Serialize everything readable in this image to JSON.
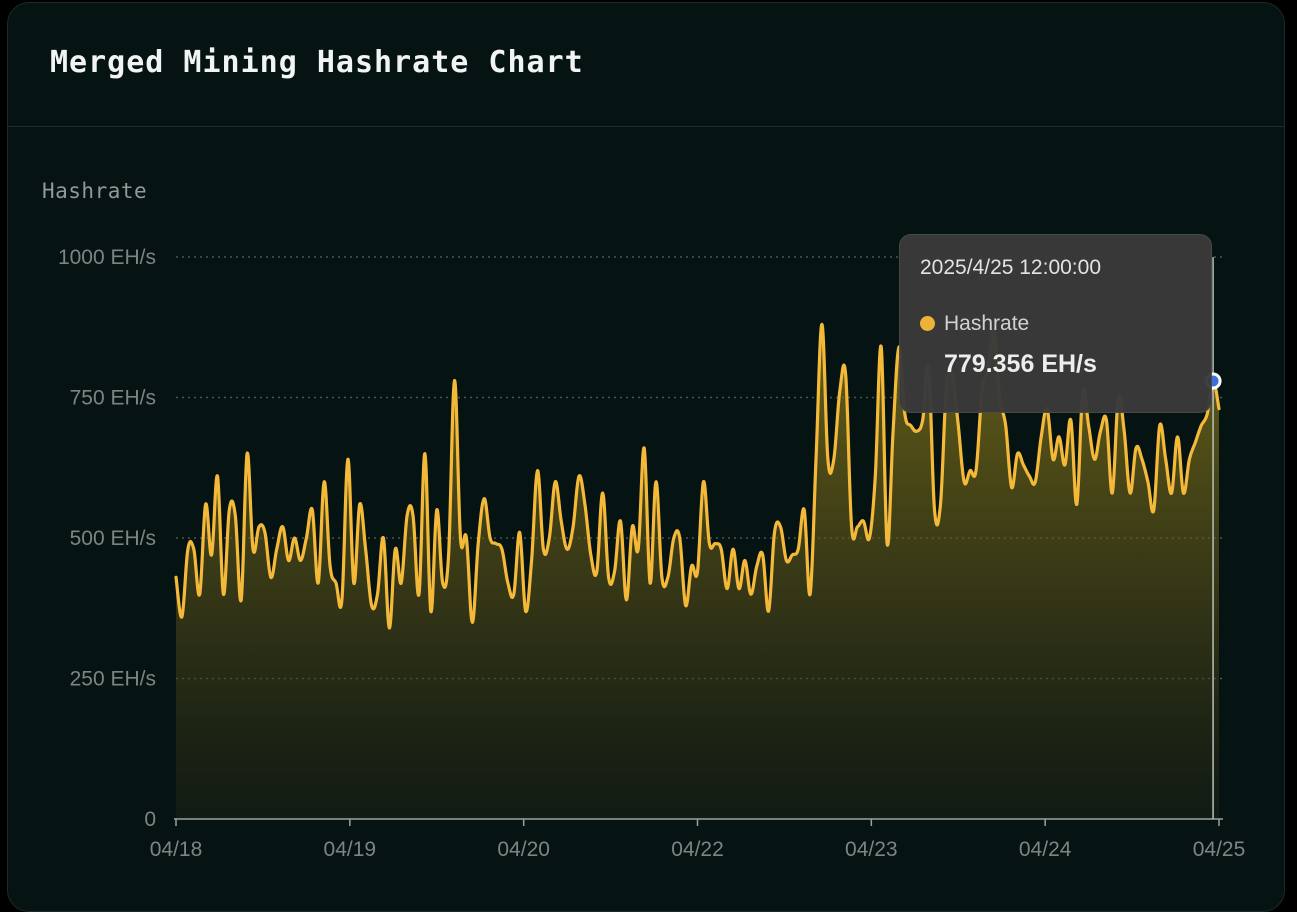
{
  "card": {
    "title": "Merged Mining Hashrate Chart"
  },
  "chart_data": {
    "type": "area",
    "xlabel": "",
    "ylabel": "Hashrate",
    "ylim": [
      0,
      1000
    ],
    "y_unit": "EH/s",
    "y_ticks": [
      {
        "value": 0,
        "label": "0"
      },
      {
        "value": 250,
        "label": "250 EH/s"
      },
      {
        "value": 500,
        "label": "500 EH/s"
      },
      {
        "value": 750,
        "label": "750 EH/s"
      },
      {
        "value": 1000,
        "label": "1000 EH/s"
      }
    ],
    "x_ticks": [
      "04/18",
      "04/19",
      "04/20",
      "04/22",
      "04/23",
      "04/24",
      "04/25"
    ],
    "grid": "horizontal dotted",
    "series": [
      {
        "name": "Hashrate",
        "color": "#f5b93a",
        "values": [
          430,
          360,
          480,
          480,
          400,
          560,
          470,
          610,
          400,
          550,
          540,
          390,
          650,
          480,
          520,
          510,
          430,
          480,
          520,
          460,
          500,
          460,
          500,
          550,
          420,
          600,
          450,
          420,
          390,
          640,
          420,
          560,
          480,
          380,
          400,
          500,
          340,
          480,
          420,
          540,
          540,
          400,
          650,
          370,
          550,
          420,
          470,
          780,
          500,
          500,
          350,
          490,
          570,
          500,
          490,
          480,
          420,
          400,
          510,
          370,
          460,
          620,
          480,
          500,
          600,
          530,
          480,
          520,
          610,
          560,
          470,
          440,
          580,
          430,
          440,
          530,
          390,
          520,
          480,
          660,
          420,
          600,
          430,
          430,
          500,
          500,
          380,
          450,
          440,
          600,
          490,
          490,
          480,
          410,
          480,
          410,
          460,
          400,
          450,
          470,
          370,
          510,
          520,
          460,
          470,
          480,
          550,
          400,
          640,
          880,
          640,
          640,
          760,
          790,
          520,
          520,
          530,
          500,
          610,
          840,
          490,
          690,
          840,
          720,
          700,
          690,
          710,
          800,
          550,
          560,
          770,
          790,
          700,
          600,
          620,
          620,
          760,
          800,
          870,
          750,
          700,
          590,
          650,
          630,
          610,
          600,
          680,
          730,
          640,
          680,
          630,
          710,
          560,
          760,
          700,
          640,
          690,
          710,
          580,
          750,
          690,
          580,
          660,
          640,
          600,
          550,
          700,
          640,
          580,
          680,
          580,
          640,
          670,
          700,
          720,
          779.356,
          730
        ]
      }
    ],
    "tooltip": {
      "date": "2025/4/25 12:00:00",
      "series": "Hashrate",
      "value": "779.356 EH/s"
    },
    "legend": "none"
  }
}
